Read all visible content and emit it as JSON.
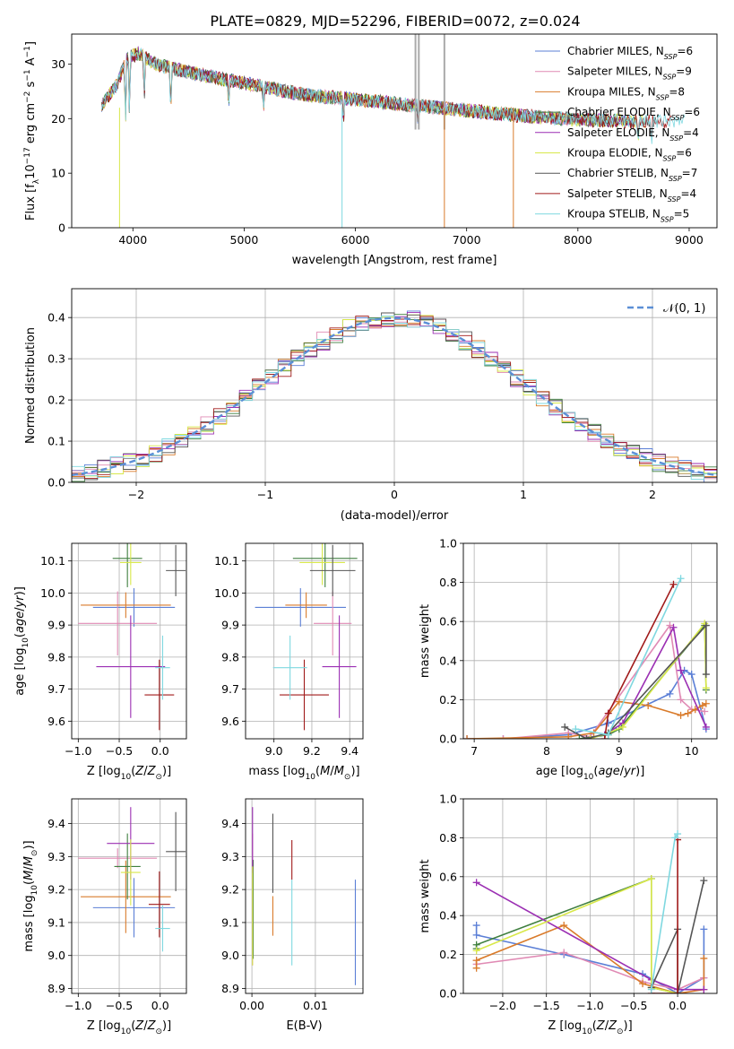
{
  "title": "PLATE=0829, MJD=52296, FIBERID=0072, z=0.024",
  "colors": {
    "Chabrier MILES": "#5b7fd6",
    "Salpeter MILES": "#e08ab4",
    "Kroupa MILES": "#d97b2b",
    "Chabrier ELODIE": "#3f7f3f",
    "Salpeter ELODIE": "#9b2fb3",
    "Kroupa ELODIE": "#d8e84a",
    "Chabrier STELIB": "#555555",
    "Salpeter STELIB": "#a01a1a",
    "Kroupa STELIB": "#7fd8e0",
    "normal_curve": "#5b8fd6"
  },
  "chart_data": [
    {
      "type": "line",
      "name": "spectrum",
      "xlabel": "wavelength [Angstrom, rest frame]",
      "ylabel": "Flux [f_λ10^-17 erg cm^-2 s^-1 A^-1]",
      "xlim": [
        3450,
        9250
      ],
      "ylim": [
        0,
        35.5
      ],
      "xticks": [
        4000,
        5000,
        6000,
        7000,
        8000,
        9000
      ],
      "yticks": [
        0,
        10,
        20,
        30
      ],
      "legend_position": "top-right",
      "legend": [
        {
          "name": "Chabrier MILES",
          "nssp": "6"
        },
        {
          "name": "Salpeter MILES",
          "nssp": "9"
        },
        {
          "name": "Kroupa MILES",
          "nssp": "8"
        },
        {
          "name": "Chabrier ELODIE",
          "nssp": "6"
        },
        {
          "name": "Salpeter ELODIE",
          "nssp": "4"
        },
        {
          "name": "Kroupa ELODIE",
          "nssp": "6"
        },
        {
          "name": "Chabrier STELIB",
          "nssp": "7"
        },
        {
          "name": "Salpeter STELIB",
          "nssp": "4"
        },
        {
          "name": "Kroupa STELIB",
          "nssp": "5"
        }
      ],
      "continuum": {
        "x": [
          3700,
          3850,
          3950,
          4050,
          4200,
          4500,
          5000,
          5500,
          6000,
          6500,
          7000,
          7500,
          8000,
          8500,
          9000
        ],
        "y": [
          22,
          26,
          31,
          32,
          30,
          28.5,
          26.5,
          24.5,
          23.5,
          22.5,
          21.5,
          20.5,
          19.8,
          19.5,
          19.5
        ]
      }
    },
    {
      "type": "histogram",
      "name": "residuals",
      "xlabel": "(data-model)/error",
      "ylabel": "Normed distribution",
      "xlim": [
        -2.5,
        2.5
      ],
      "ylim": [
        0,
        0.47
      ],
      "xticks": [
        -2,
        -1,
        0,
        1,
        2
      ],
      "yticks": [
        0.0,
        0.1,
        0.2,
        0.3,
        0.4
      ],
      "grid": true,
      "legend_label": "𝒩(0, 1)",
      "bin_width": 0.1
    },
    {
      "type": "errorbar",
      "name": "age-vs-Z",
      "xlabel": "Z [log10(Z/Z⊙)]",
      "ylabel": "age  [log10(age/yr)]",
      "xlim": [
        -1.08,
        0.32
      ],
      "ylim": [
        9.545,
        10.155
      ],
      "xticks": [
        -1.0,
        -0.5,
        0.0
      ],
      "yticks": [
        9.6,
        9.7,
        9.8,
        9.9,
        10.0,
        10.1
      ],
      "grid": true,
      "points": [
        {
          "series": "Chabrier MILES",
          "x": -0.32,
          "xerr": 0.5,
          "y": 9.955,
          "yerr": 0.06
        },
        {
          "series": "Salpeter MILES",
          "x": -0.52,
          "xerr": 0.48,
          "y": 9.905,
          "yerr": 0.1
        },
        {
          "series": "Kroupa MILES",
          "x": -0.42,
          "xerr": 0.55,
          "y": 9.962,
          "yerr": 0.04
        },
        {
          "series": "Chabrier ELODIE",
          "x": -0.4,
          "xerr": 0.18,
          "y": 10.108,
          "yerr": 0.09
        },
        {
          "series": "Salpeter ELODIE",
          "x": -0.36,
          "xerr": 0.42,
          "y": 9.77,
          "yerr": 0.16
        },
        {
          "series": "Kroupa ELODIE",
          "x": -0.36,
          "xerr": 0.13,
          "y": 10.095,
          "yerr": 0.07
        },
        {
          "series": "Chabrier STELIB",
          "x": 0.19,
          "xerr": 0.12,
          "y": 10.07,
          "yerr": 0.08
        },
        {
          "series": "Salpeter STELIB",
          "x": -0.01,
          "xerr": 0.18,
          "y": 9.682,
          "yerr": 0.11
        },
        {
          "series": "Kroupa STELIB",
          "x": 0.03,
          "xerr": 0.09,
          "y": 9.767,
          "yerr": 0.1
        }
      ]
    },
    {
      "type": "errorbar",
      "name": "age-vs-mass",
      "xlabel": "mass [log10(M/M⊙)]",
      "ylabel": "",
      "xlim": [
        8.85,
        9.47
      ],
      "ylim": [
        9.545,
        10.155
      ],
      "xticks": [
        9.0,
        9.2,
        9.4
      ],
      "yticks": [
        9.6,
        9.7,
        9.8,
        9.9,
        10.0,
        10.1
      ],
      "grid": true,
      "points": [
        {
          "series": "Chabrier MILES",
          "x": 9.14,
          "xerr": 0.24,
          "y": 9.955,
          "yerr": 0.06
        },
        {
          "series": "Salpeter MILES",
          "x": 9.31,
          "xerr": 0.1,
          "y": 9.905,
          "yerr": 0.1
        },
        {
          "series": "Kroupa MILES",
          "x": 9.17,
          "xerr": 0.11,
          "y": 9.962,
          "yerr": 0.04
        },
        {
          "series": "Chabrier ELODIE",
          "x": 9.27,
          "xerr": 0.17,
          "y": 10.108,
          "yerr": 0.09
        },
        {
          "series": "Salpeter ELODIE",
          "x": 9.345,
          "xerr": 0.09,
          "y": 9.77,
          "yerr": 0.16
        },
        {
          "series": "Kroupa ELODIE",
          "x": 9.255,
          "xerr": 0.12,
          "y": 10.095,
          "yerr": 0.07
        },
        {
          "series": "Chabrier STELIB",
          "x": 9.31,
          "xerr": 0.12,
          "y": 10.07,
          "yerr": 0.08
        },
        {
          "series": "Salpeter STELIB",
          "x": 9.16,
          "xerr": 0.13,
          "y": 9.682,
          "yerr": 0.11
        },
        {
          "series": "Kroupa STELIB",
          "x": 9.085,
          "xerr": 0.09,
          "y": 9.767,
          "yerr": 0.1
        }
      ]
    },
    {
      "type": "line",
      "name": "mass-weight-vs-age",
      "xlabel": "age  [log10(age/yr)]",
      "ylabel": "mass weight",
      "xlim": [
        6.85,
        10.35
      ],
      "ylim": [
        0,
        1.0
      ],
      "xticks": [
        7,
        8,
        9,
        10
      ],
      "yticks": [
        0.0,
        0.2,
        0.4,
        0.6,
        0.8,
        1.0
      ],
      "grid": true,
      "series": [
        {
          "name": "Chabrier MILES",
          "x": [
            6.9,
            7.4,
            8.3,
            8.85,
            9.7,
            9.9,
            10.0,
            10.2
          ],
          "y": [
            0.0,
            0.0,
            0.02,
            0.08,
            0.23,
            0.35,
            0.33,
            0.05
          ]
        },
        {
          "name": "Salpeter MILES",
          "x": [
            6.9,
            7.4,
            8.3,
            8.6,
            9.7,
            9.85,
            10.0,
            10.18
          ],
          "y": [
            0.0,
            0.0,
            0.03,
            0.01,
            0.58,
            0.2,
            0.15,
            0.14
          ]
        },
        {
          "name": "Kroupa MILES",
          "x": [
            6.9,
            8.3,
            8.65,
            9.0,
            9.4,
            9.85,
            9.95,
            10.05,
            10.15,
            10.2
          ],
          "y": [
            0.0,
            0.01,
            0.03,
            0.19,
            0.17,
            0.12,
            0.13,
            0.15,
            0.17,
            0.18
          ]
        },
        {
          "name": "Chabrier ELODIE",
          "x": [
            8.45,
            8.85,
            9.0,
            10.18,
            10.2
          ],
          "y": [
            0.0,
            0.02,
            0.05,
            0.58,
            0.25
          ]
        },
        {
          "name": "Salpeter ELODIE",
          "x": [
            8.8,
            9.05,
            9.75,
            9.85,
            10.2
          ],
          "y": [
            0.02,
            0.08,
            0.57,
            0.35,
            0.06
          ]
        },
        {
          "name": "Kroupa ELODIE",
          "x": [
            8.6,
            8.85,
            9.05,
            10.18,
            10.2
          ],
          "y": [
            0.0,
            0.03,
            0.06,
            0.59,
            0.26
          ]
        },
        {
          "name": "Chabrier STELIB",
          "x": [
            8.25,
            8.55,
            8.85,
            10.2,
            10.2
          ],
          "y": [
            0.06,
            0.0,
            0.03,
            0.58,
            0.33
          ]
        },
        {
          "name": "Salpeter STELIB",
          "x": [
            8.8,
            8.85,
            9.75
          ],
          "y": [
            0.0,
            0.13,
            0.79
          ]
        },
        {
          "name": "Kroupa STELIB",
          "x": [
            8.4,
            8.85,
            9.85
          ],
          "y": [
            0.05,
            0.02,
            0.82
          ]
        }
      ]
    },
    {
      "type": "errorbar",
      "name": "mass-vs-Z",
      "xlabel": "Z [log10(Z/Z⊙)]",
      "ylabel": "mass [log10(M/M⊙)]",
      "xlim": [
        -1.08,
        0.32
      ],
      "ylim": [
        8.885,
        9.475
      ],
      "xticks": [
        -1.0,
        -0.5,
        0.0
      ],
      "yticks": [
        8.9,
        9.0,
        9.1,
        9.2,
        9.3,
        9.4
      ],
      "grid": true,
      "points": [
        {
          "series": "Chabrier MILES",
          "x": -0.32,
          "xerr": 0.5,
          "y": 9.145,
          "yerr": 0.09
        },
        {
          "series": "Salpeter MILES",
          "x": -0.52,
          "xerr": 0.48,
          "y": 9.295,
          "yerr": 0.03
        },
        {
          "series": "Kroupa MILES",
          "x": -0.42,
          "xerr": 0.55,
          "y": 9.178,
          "yerr": 0.11
        },
        {
          "series": "Chabrier ELODIE",
          "x": -0.4,
          "xerr": 0.16,
          "y": 9.27,
          "yerr": 0.1
        },
        {
          "series": "Salpeter ELODIE",
          "x": -0.36,
          "xerr": 0.29,
          "y": 9.34,
          "yerr": 0.11
        },
        {
          "series": "Kroupa ELODIE",
          "x": -0.36,
          "xerr": 0.12,
          "y": 9.252,
          "yerr": 0.1
        },
        {
          "series": "Chabrier STELIB",
          "x": 0.19,
          "xerr": 0.12,
          "y": 9.315,
          "yerr": 0.12
        },
        {
          "series": "Salpeter STELIB",
          "x": -0.01,
          "xerr": 0.13,
          "y": 9.155,
          "yerr": 0.1
        },
        {
          "series": "Kroupa STELIB",
          "x": 0.03,
          "xerr": 0.09,
          "y": 9.082,
          "yerr": 0.07
        }
      ]
    },
    {
      "type": "errorbar",
      "name": "mass-vs-EBV",
      "xlabel": "E(B-V)",
      "ylabel": "",
      "xlim": [
        -0.001,
        0.0175
      ],
      "ylim": [
        8.885,
        9.475
      ],
      "xticks": [
        0.0,
        0.01
      ],
      "xtick_labels": [
        "0.00",
        "0.01"
      ],
      "yticks": [
        8.9,
        9.0,
        9.1,
        9.2,
        9.3,
        9.4
      ],
      "grid": true,
      "points": [
        {
          "series": "Chabrier MILES",
          "x": 0.0163,
          "y": 9.07,
          "yerr": 0.16
        },
        {
          "series": "Salpeter MILES",
          "x": 0.0001,
          "y": 9.17,
          "yerr": 0.2
        },
        {
          "series": "Kroupa MILES",
          "x": 0.0033,
          "y": 9.12,
          "yerr": 0.06
        },
        {
          "series": "Chabrier ELODIE",
          "x": 0.0002,
          "y": 9.14,
          "yerr": 0.15
        },
        {
          "series": "Salpeter ELODIE",
          "x": 0.0001,
          "y": 9.35,
          "yerr": 0.1
        },
        {
          "series": "Kroupa ELODIE",
          "x": 0.0001,
          "y": 9.12,
          "yerr": 0.15
        },
        {
          "series": "Chabrier STELIB",
          "x": 0.0033,
          "y": 9.31,
          "yerr": 0.12
        },
        {
          "series": "Salpeter STELIB",
          "x": 0.0063,
          "y": 9.29,
          "yerr": 0.06
        },
        {
          "series": "Kroupa STELIB",
          "x": 0.0063,
          "y": 9.1,
          "yerr": 0.13
        }
      ]
    },
    {
      "type": "line",
      "name": "mass-weight-vs-Z",
      "xlabel": "Z [log10(Z/Z⊙)]",
      "ylabel": "mass weight",
      "xlim": [
        -2.45,
        0.45
      ],
      "ylim": [
        0,
        1.0
      ],
      "xticks": [
        -2.0,
        -1.5,
        -1.0,
        -0.5,
        0.0
      ],
      "yticks": [
        0.0,
        0.2,
        0.4,
        0.6,
        0.8,
        1.0
      ],
      "grid": true,
      "series": [
        {
          "name": "Chabrier MILES",
          "x": [
            -2.3,
            -2.3,
            -1.3,
            -0.4,
            0.0,
            0.3,
            0.3
          ],
          "y": [
            0.35,
            0.3,
            0.2,
            0.1,
            0.0,
            0.08,
            0.33
          ]
        },
        {
          "name": "Salpeter MILES",
          "x": [
            -2.3,
            -2.3,
            -1.3,
            -0.4,
            0.0,
            0.3
          ],
          "y": [
            0.17,
            0.15,
            0.21,
            0.06,
            0.02,
            0.08
          ]
        },
        {
          "name": "Kroupa MILES",
          "x": [
            -2.3,
            -2.3,
            -1.3,
            -0.4,
            0.0,
            0.3,
            0.3
          ],
          "y": [
            0.13,
            0.17,
            0.35,
            0.05,
            0.0,
            0.02,
            0.18
          ]
        },
        {
          "name": "Chabrier ELODIE",
          "x": [
            -2.3,
            -2.3,
            -0.3,
            -0.3,
            0.0
          ],
          "y": [
            0.23,
            0.25,
            0.59,
            0.03,
            0.0
          ]
        },
        {
          "name": "Salpeter ELODIE",
          "x": [
            -2.3,
            -0.3,
            0.0,
            0.3
          ],
          "y": [
            0.57,
            0.07,
            0.02,
            0.02
          ]
        },
        {
          "name": "Kroupa ELODIE",
          "x": [
            -2.3,
            -0.3,
            -0.3,
            0.0
          ],
          "y": [
            0.22,
            0.59,
            0.03,
            0.0
          ]
        },
        {
          "name": "Chabrier STELIB",
          "x": [
            -0.3,
            0.0,
            0.0,
            0.3
          ],
          "y": [
            0.03,
            0.33,
            0.0,
            0.58
          ]
        },
        {
          "name": "Salpeter STELIB",
          "x": [
            -0.3,
            0.0,
            0.0
          ],
          "y": [
            0.0,
            0.0,
            0.79
          ]
        },
        {
          "name": "Kroupa STELIB",
          "x": [
            -0.3,
            -0.03,
            0.0
          ],
          "y": [
            0.02,
            0.8,
            0.82
          ]
        }
      ]
    }
  ]
}
